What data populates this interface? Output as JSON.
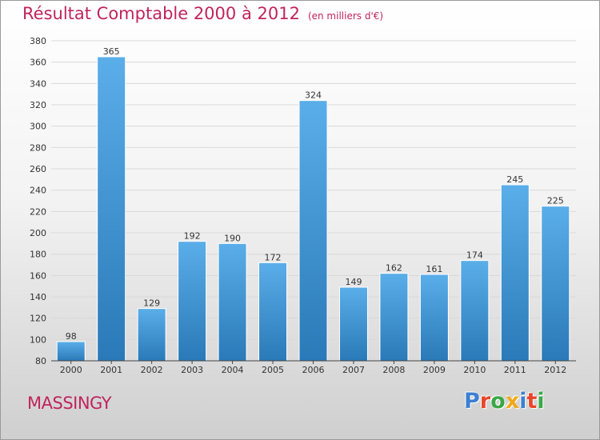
{
  "title": "Résultat Comptable 2000 à 2012",
  "subtitle": "(en milliers d'€)",
  "location": "MASSINGY",
  "logo": {
    "text": "Proxiti",
    "letter_colors": [
      "#3d7fd0",
      "#e8462a",
      "#39a845",
      "#f0a81c",
      "#3d7fd0",
      "#e8462a",
      "#39a845"
    ]
  },
  "colors": {
    "title": "#c0245c",
    "bar_top": "#5aaee9",
    "bar_bottom": "#2a79b8",
    "grid": "#d9d9d9"
  },
  "chart_data": {
    "type": "bar",
    "categories": [
      "2000",
      "2001",
      "2002",
      "2003",
      "2004",
      "2005",
      "2006",
      "2007",
      "2008",
      "2009",
      "2010",
      "2011",
      "2012"
    ],
    "values": [
      98,
      365,
      129,
      192,
      190,
      172,
      324,
      149,
      162,
      161,
      174,
      245,
      225
    ],
    "title": "Résultat Comptable 2000 à 2012",
    "xlabel": "",
    "ylabel": "",
    "ylim": [
      80,
      380
    ],
    "yticks": [
      80,
      100,
      120,
      140,
      160,
      180,
      200,
      220,
      240,
      260,
      280,
      300,
      320,
      340,
      360,
      380
    ],
    "grid": true,
    "data_labels": true
  }
}
